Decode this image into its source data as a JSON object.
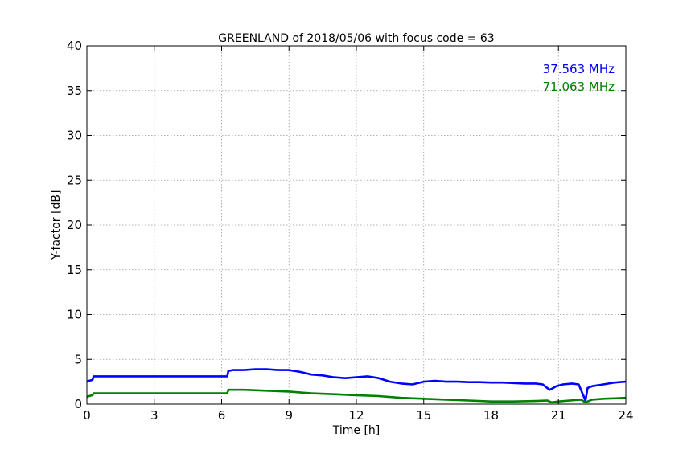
{
  "chart_data": {
    "type": "line",
    "title": "GREENLAND of 2018/05/06 with focus code = 63",
    "xlabel": "Time [h]",
    "ylabel": "Y-factor [dB]",
    "xlim": [
      0,
      24
    ],
    "ylim": [
      0,
      40
    ],
    "xticks": [
      0,
      3,
      6,
      9,
      12,
      15,
      18,
      21,
      24
    ],
    "yticks": [
      0,
      5,
      10,
      15,
      20,
      25,
      30,
      35,
      40
    ],
    "grid": true,
    "legend_position": "top-right",
    "series": [
      {
        "name": "37.563 MHz",
        "color": "#0000ff",
        "x": [
          0.0,
          0.1,
          0.25,
          0.3,
          6.25,
          6.3,
          6.5,
          7.0,
          7.5,
          8.0,
          8.5,
          9.0,
          9.5,
          10.0,
          10.5,
          11.0,
          11.5,
          12.0,
          12.5,
          13.0,
          13.5,
          14.0,
          14.5,
          15.0,
          15.5,
          16.0,
          16.5,
          17.0,
          17.5,
          18.0,
          18.5,
          19.0,
          19.5,
          20.0,
          20.3,
          20.6,
          20.7,
          20.9,
          21.2,
          21.6,
          21.9,
          22.1,
          22.2,
          22.3,
          22.5,
          23.0,
          23.5,
          24.0
        ],
        "values": [
          2.5,
          2.6,
          2.7,
          3.1,
          3.1,
          3.7,
          3.8,
          3.8,
          3.9,
          3.9,
          3.8,
          3.8,
          3.6,
          3.3,
          3.2,
          3.0,
          2.9,
          3.0,
          3.1,
          2.9,
          2.5,
          2.3,
          2.2,
          2.5,
          2.6,
          2.5,
          2.5,
          2.45,
          2.45,
          2.4,
          2.4,
          2.35,
          2.3,
          2.3,
          2.2,
          1.6,
          1.7,
          2.0,
          2.2,
          2.3,
          2.2,
          1.0,
          0.4,
          1.8,
          2.0,
          2.2,
          2.4,
          2.5
        ]
      },
      {
        "name": "71.063 MHz",
        "color": "#008000",
        "x": [
          0.0,
          0.1,
          0.25,
          0.3,
          6.25,
          6.3,
          7.0,
          8.0,
          9.0,
          10.0,
          11.0,
          12.0,
          13.0,
          14.0,
          15.0,
          16.0,
          17.0,
          18.0,
          19.0,
          20.0,
          20.5,
          20.7,
          21.0,
          21.5,
          22.0,
          22.2,
          22.5,
          23.0,
          23.5,
          24.0
        ],
        "values": [
          0.8,
          0.9,
          1.0,
          1.2,
          1.2,
          1.6,
          1.6,
          1.5,
          1.4,
          1.2,
          1.1,
          1.0,
          0.9,
          0.7,
          0.6,
          0.5,
          0.4,
          0.3,
          0.3,
          0.35,
          0.4,
          0.2,
          0.3,
          0.4,
          0.5,
          0.2,
          0.5,
          0.6,
          0.65,
          0.7
        ]
      }
    ]
  }
}
